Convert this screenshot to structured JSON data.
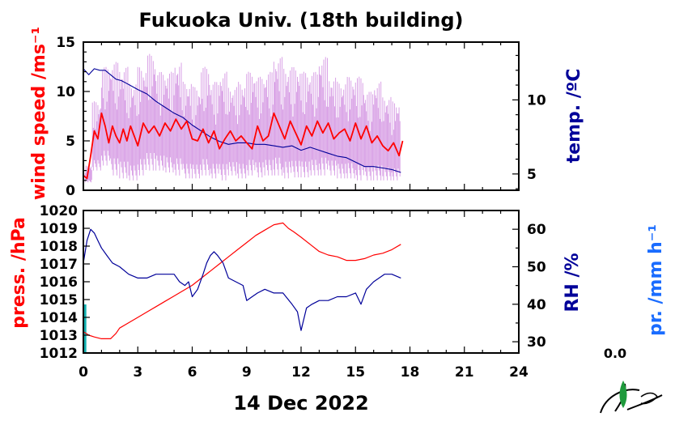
{
  "title": "Fukuoka Univ. (18th building)",
  "date_label": "14 Dec 2022",
  "precip_total": "0.0",
  "colors": {
    "wind_label": "#ff0000",
    "temp_label": "#000099",
    "rh_label": "#000099",
    "precip_label": "#1a6cff",
    "wind_avg": "#ff0000",
    "wind_raw": "#d9a2e6",
    "temp_line": "#000099",
    "press_line": "#ff0000",
    "rh_line": "#000099",
    "precip_bar": "#00aaaa"
  },
  "chart_data": [
    {
      "type": "line",
      "x_label": "",
      "x_range": [
        0,
        24
      ],
      "x_ticks": [
        "0",
        "3",
        "6",
        "9",
        "12",
        "15",
        "18",
        "21",
        "24"
      ],
      "y_left": {
        "label": "wind speed /ms⁻¹",
        "range": [
          0,
          15
        ],
        "ticks": [
          "0",
          "5",
          "10",
          "15"
        ]
      },
      "y_right": {
        "label": "temp. /ºC",
        "range": [
          3.9,
          13.9
        ],
        "ticks": [
          "5",
          "10"
        ]
      },
      "series": [
        {
          "axis": "left",
          "style": "raw-spread",
          "x": [
            0.1,
            0.5,
            1.0,
            1.5,
            2.0,
            2.5,
            3.0,
            3.5,
            4.0,
            4.5,
            5.0,
            5.5,
            6.0,
            6.5,
            7.0,
            7.5,
            8.0,
            8.5,
            9.0,
            9.5,
            10.0,
            10.5,
            11.0,
            11.5,
            12.0,
            12.5,
            13.0,
            13.5,
            14.0,
            14.5,
            15.0,
            15.5,
            16.0,
            16.5,
            17.0,
            17.5
          ],
          "low": [
            0.8,
            2.0,
            2.5,
            1.5,
            1.2,
            1.0,
            1.5,
            2.0,
            2.0,
            1.8,
            1.5,
            1.2,
            1.2,
            1.5,
            1.2,
            1.0,
            1.5,
            1.2,
            1.5,
            1.3,
            1.5,
            1.5,
            1.2,
            1.3,
            1.3,
            1.5,
            1.5,
            1.5,
            1.2,
            1.2,
            1.0,
            1.0,
            1.0,
            1.0,
            1.0,
            1.5
          ],
          "high": [
            2.5,
            9.0,
            12.5,
            13.0,
            12.5,
            11.0,
            12.5,
            13.8,
            12.0,
            12.0,
            13.0,
            11.0,
            10.5,
            12.5,
            11.0,
            12.0,
            10.5,
            11.0,
            12.0,
            11.5,
            12.0,
            13.5,
            12.5,
            12.5,
            12.0,
            12.0,
            13.5,
            11.5,
            11.0,
            11.5,
            11.5,
            10.0,
            11.0,
            9.5,
            9.0,
            7.0
          ]
        },
        {
          "axis": "left",
          "style": "average",
          "x": [
            0.0,
            0.2,
            0.4,
            0.6,
            0.8,
            1.0,
            1.2,
            1.4,
            1.6,
            1.8,
            2.0,
            2.2,
            2.4,
            2.6,
            2.8,
            3.0,
            3.3,
            3.6,
            3.9,
            4.2,
            4.5,
            4.8,
            5.1,
            5.4,
            5.7,
            6.0,
            6.3,
            6.6,
            6.9,
            7.2,
            7.5,
            7.8,
            8.1,
            8.4,
            8.7,
            9.0,
            9.3,
            9.6,
            9.9,
            10.2,
            10.5,
            10.8,
            11.1,
            11.4,
            11.7,
            12.0,
            12.3,
            12.6,
            12.9,
            13.2,
            13.5,
            13.8,
            14.1,
            14.4,
            14.7,
            15.0,
            15.3,
            15.6,
            15.9,
            16.2,
            16.5,
            16.8,
            17.1,
            17.4,
            17.6
          ],
          "y": [
            1.5,
            1.2,
            3.5,
            6.0,
            5.2,
            7.8,
            6.5,
            4.8,
            6.5,
            5.5,
            4.8,
            6.2,
            5.0,
            6.5,
            5.5,
            4.5,
            6.8,
            5.8,
            6.5,
            5.5,
            6.8,
            6.0,
            7.2,
            6.2,
            7.0,
            5.2,
            5.0,
            6.2,
            4.8,
            6.0,
            4.2,
            5.2,
            6.0,
            5.0,
            5.5,
            4.8,
            4.2,
            6.5,
            5.0,
            5.5,
            7.8,
            6.5,
            5.2,
            7.0,
            5.8,
            4.6,
            6.5,
            5.5,
            7.0,
            5.8,
            6.8,
            5.2,
            5.8,
            6.2,
            5.0,
            6.8,
            5.2,
            6.5,
            4.8,
            5.5,
            4.5,
            4.0,
            4.8,
            3.5,
            5.0
          ]
        },
        {
          "axis": "right",
          "style": "temperature",
          "x": [
            0.0,
            0.3,
            0.6,
            0.9,
            1.2,
            1.5,
            1.8,
            2.1,
            2.4,
            2.7,
            3.0,
            3.5,
            4.0,
            4.5,
            5.0,
            5.5,
            6.0,
            6.5,
            7.0,
            7.5,
            8.0,
            8.5,
            9.0,
            9.5,
            10.0,
            10.5,
            11.0,
            11.5,
            12.0,
            12.5,
            13.0,
            13.5,
            14.0,
            14.5,
            15.0,
            15.5,
            16.0,
            16.5,
            17.0,
            17.5
          ],
          "y": [
            12.1,
            11.7,
            12.1,
            12.0,
            12.0,
            11.7,
            11.4,
            11.3,
            11.1,
            10.9,
            10.7,
            10.4,
            9.9,
            9.5,
            9.1,
            8.8,
            8.3,
            7.9,
            7.5,
            7.2,
            7.0,
            7.1,
            7.1,
            7.0,
            7.0,
            6.9,
            6.8,
            6.9,
            6.6,
            6.8,
            6.6,
            6.4,
            6.2,
            6.1,
            5.8,
            5.5,
            5.5,
            5.4,
            5.3,
            5.1
          ]
        }
      ]
    },
    {
      "type": "line",
      "x_label": "14 Dec 2022",
      "x_range": [
        0,
        24
      ],
      "x_ticks": [
        "0",
        "3",
        "6",
        "9",
        "12",
        "15",
        "18",
        "21",
        "24"
      ],
      "y_left": {
        "label": "press. /hPa",
        "range": [
          1012,
          1020
        ],
        "ticks": [
          "1012",
          "1013",
          "1014",
          "1015",
          "1016",
          "1017",
          "1018",
          "1019",
          "1020"
        ]
      },
      "y_right": {
        "label": "RH /%",
        "range": [
          27,
          65
        ],
        "ticks": [
          "30",
          "40",
          "50",
          "60"
        ]
      },
      "y_extra": {
        "label": "pr. /mm h⁻¹"
      },
      "series": [
        {
          "axis": "left",
          "style": "pressure",
          "x": [
            0.0,
            0.3,
            0.6,
            1.0,
            1.3,
            1.5,
            1.8,
            2.0,
            2.5,
            3.0,
            3.5,
            4.0,
            4.5,
            5.0,
            5.5,
            6.0,
            6.5,
            7.0,
            7.5,
            8.0,
            8.5,
            9.0,
            9.5,
            10.0,
            10.5,
            11.0,
            11.3,
            11.6,
            12.0,
            12.5,
            13.0,
            13.5,
            14.0,
            14.5,
            15.0,
            15.5,
            16.0,
            16.5,
            17.0,
            17.5
          ],
          "y": [
            1013.2,
            1013.0,
            1012.9,
            1012.8,
            1012.8,
            1012.8,
            1013.1,
            1013.4,
            1013.7,
            1014.0,
            1014.3,
            1014.6,
            1014.9,
            1015.2,
            1015.5,
            1015.8,
            1016.2,
            1016.6,
            1017.0,
            1017.4,
            1017.8,
            1018.2,
            1018.6,
            1018.9,
            1019.2,
            1019.3,
            1019.0,
            1018.8,
            1018.5,
            1018.1,
            1017.7,
            1017.5,
            1017.4,
            1017.2,
            1017.2,
            1017.3,
            1017.5,
            1017.6,
            1017.8,
            1018.1
          ]
        },
        {
          "axis": "right",
          "style": "humidity",
          "x": [
            0.0,
            0.2,
            0.4,
            0.6,
            0.8,
            1.0,
            1.3,
            1.6,
            2.0,
            2.5,
            3.0,
            3.5,
            4.0,
            4.5,
            5.0,
            5.3,
            5.6,
            5.8,
            6.0,
            6.3,
            6.6,
            6.8,
            7.0,
            7.2,
            7.4,
            7.7,
            8.0,
            8.4,
            8.8,
            9.0,
            9.3,
            9.6,
            10.0,
            10.5,
            11.0,
            11.5,
            11.8,
            12.0,
            12.3,
            12.6,
            13.0,
            13.5,
            14.0,
            14.5,
            15.0,
            15.3,
            15.6,
            16.0,
            16.3,
            16.6,
            17.0,
            17.5
          ],
          "y": [
            51,
            57,
            60,
            59,
            57,
            55,
            53,
            51,
            50,
            48,
            47,
            47,
            48,
            48,
            48,
            46,
            45,
            46,
            42,
            44,
            48,
            51,
            53,
            54,
            53,
            51,
            47,
            46,
            45,
            41,
            42,
            43,
            44,
            43,
            43,
            40,
            38,
            33,
            39,
            40,
            41,
            41,
            42,
            42,
            43,
            40,
            44,
            46,
            47,
            48,
            48,
            47
          ]
        },
        {
          "axis": "extra",
          "style": "precip-bar",
          "x": [
            0.02,
            0.06,
            0.1,
            0.14
          ],
          "y": [
            0,
            0,
            0,
            0
          ]
        }
      ]
    }
  ]
}
